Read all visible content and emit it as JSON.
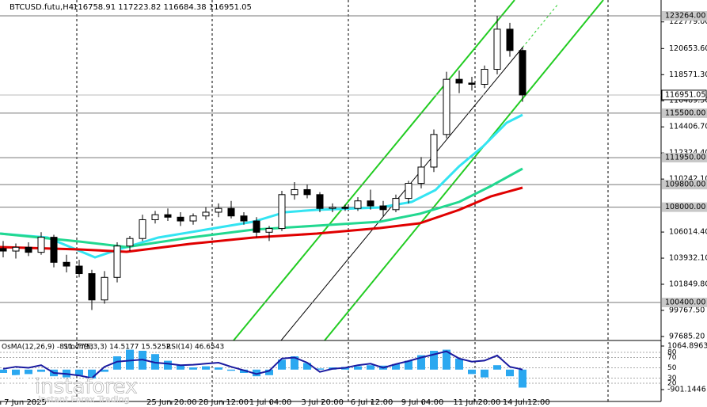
{
  "chart_data": [
    {
      "type": "candlestick",
      "title": "BTCUSD.futu,H4",
      "ohlc_header": "116758.91 117223.82 116684.38 116951.05",
      "x": [
        0,
        1,
        2,
        3,
        4,
        5,
        6,
        7,
        8,
        9,
        10,
        11,
        12,
        13,
        14,
        15,
        16,
        17,
        18,
        19,
        20,
        21,
        22,
        23,
        24,
        25,
        26,
        27,
        28,
        29,
        30,
        31,
        32,
        33,
        34,
        35,
        36,
        37,
        38,
        39,
        40,
        41
      ],
      "open": [
        104700,
        104500,
        104800,
        104400,
        105600,
        103600,
        103300,
        102700,
        100600,
        102400,
        104900,
        105500,
        107000,
        107400,
        107200,
        106900,
        107300,
        107600,
        107900,
        107300,
        106900,
        106000,
        106300,
        109000,
        109400,
        109000,
        107900,
        108000,
        107900,
        108500,
        108100,
        107800,
        108700,
        109900,
        111200,
        113800,
        118200,
        117900,
        117800,
        119000,
        122200,
        120500
      ],
      "high": [
        105300,
        105100,
        105200,
        106000,
        105800,
        104200,
        103800,
        103000,
        102900,
        105200,
        105700,
        107400,
        107700,
        107900,
        107600,
        107500,
        108000,
        108300,
        108500,
        107600,
        107200,
        106500,
        109300,
        110000,
        109800,
        109200,
        108300,
        108200,
        108800,
        109400,
        108500,
        109000,
        110100,
        112000,
        114200,
        118800,
        118900,
        118400,
        119300,
        123264,
        122700,
        120800
      ],
      "low": [
        104000,
        103900,
        104100,
        104200,
        103200,
        102800,
        102400,
        99800,
        100300,
        102000,
        104500,
        105300,
        106700,
        106900,
        106500,
        106600,
        107000,
        107200,
        107100,
        106600,
        105600,
        105300,
        106100,
        108600,
        108700,
        107600,
        107600,
        107700,
        107700,
        107800,
        107300,
        107600,
        108300,
        109500,
        110800,
        113500,
        117100,
        117300,
        117500,
        118600,
        120000,
        116400
      ],
      "close": [
        104500,
        104800,
        104400,
        105600,
        103600,
        103300,
        102700,
        100600,
        102400,
        104900,
        105500,
        107000,
        107400,
        107200,
        106900,
        107300,
        107600,
        107900,
        107300,
        106900,
        106000,
        106300,
        109000,
        109400,
        109000,
        107900,
        108000,
        107900,
        108500,
        108100,
        107800,
        108700,
        109900,
        111200,
        113800,
        118200,
        117900,
        117800,
        119000,
        122200,
        120500,
        116951.05
      ],
      "lines": [
        {
          "color": "#33e4f2",
          "x": [
            -0.25,
            3.5,
            7.25,
            9.125,
            12.25,
            16,
            19.75,
            22.25,
            24.75,
            29.75,
            32.25,
            34.125,
            36,
            37.875,
            39.75,
            41
          ],
          "values": [
            105892,
            105576,
            103997,
            104632,
            105576,
            106208,
            106840,
            107598,
            107787,
            107977,
            108419,
            109366,
            111261,
            112841,
            114736,
            115368
          ]
        },
        {
          "color": "#22d890",
          "x": [
            -0.25,
            6,
            9.75,
            14.75,
            19.75,
            24.75,
            29.75,
            32.875,
            36,
            38.5,
            41
          ],
          "values": [
            105892,
            105260,
            104818,
            105576,
            106208,
            106524,
            106840,
            107472,
            108419,
            109682,
            111072
          ]
        },
        {
          "color": "#e00000",
          "x": [
            -0.25,
            6,
            9.75,
            14.75,
            19.75,
            24.75,
            29.75,
            32.875,
            36,
            38.5,
            41
          ],
          "values": [
            104818,
            104632,
            104440,
            105070,
            105576,
            105892,
            106334,
            106714,
            107787,
            108860,
            109556
          ]
        }
      ],
      "levels": [
        {
          "value": 123264,
          "label": "123264.00"
        },
        {
          "value": 115500,
          "label": "115500.00"
        },
        {
          "value": 111950,
          "label": "111950.00"
        },
        {
          "value": 109800,
          "label": "109800.00"
        },
        {
          "value": 108000,
          "label": "108000.00"
        },
        {
          "value": 100400,
          "label": "100400.00"
        }
      ],
      "current": {
        "value": 116951.05,
        "label": "116951.05"
      },
      "xlim": [
        -0.25,
        51.9375
      ],
      "ylim": [
        97364.7,
        124527.4
      ],
      "yticks": [
        {
          "value": 122779,
          "label": "122779.00"
        },
        {
          "value": 120653.6,
          "label": "120653.60"
        },
        {
          "value": 118571.3,
          "label": "118571.30"
        },
        {
          "value": 116489.5,
          "label": "116489.50"
        },
        {
          "value": 114406.7,
          "label": "114406.70"
        },
        {
          "value": 112324.4,
          "label": "112324.40"
        },
        {
          "value": 110242.1,
          "label": "110242.10"
        },
        {
          "value": 106014.4,
          "label": "106014.40"
        },
        {
          "value": 103932.1,
          "label": "103932.10"
        },
        {
          "value": 101849.8,
          "label": "101849.80"
        },
        {
          "value": 99767.5,
          "label": "99767.50"
        },
        {
          "value": 97685.2,
          "label": "97685.20"
        }
      ],
      "xticks": [
        {
          "value": -0.2,
          "label": "7 Jun 2025"
        },
        {
          "value": 13.3,
          "label": "25 Jun 20:00"
        },
        {
          "value": 17.4,
          "label": "28 Jun 12:00"
        },
        {
          "value": 21.1,
          "label": "1 Jul 04:00"
        },
        {
          "value": 25.2,
          "label": "3 Jul 20:00"
        },
        {
          "value": 29.1,
          "label": "6 Jul 12:00"
        },
        {
          "value": 33.1,
          "label": "9 Jul 04:00"
        },
        {
          "value": 37.4,
          "label": "11 Jul 20:00"
        },
        {
          "value": 41.3,
          "label": "14 Jul 12:00"
        }
      ]
    },
    {
      "type": "oscillator",
      "labels": [
        "OsMA(12,26,9) -811.7793",
        "Stoch(5,3,3) 14.5177 15.5252",
        "RSI(14) 46.6543"
      ],
      "osma": [
        -150,
        -250,
        -200,
        -100,
        -300,
        -350,
        -250,
        -400,
        -100,
        600,
        900,
        850,
        700,
        400,
        200,
        100,
        150,
        100,
        -50,
        -150,
        -300,
        -250,
        450,
        600,
        300,
        50,
        100,
        120,
        150,
        200,
        180,
        250,
        400,
        650,
        850,
        900,
        500,
        -200,
        -350,
        200,
        -300,
        -811.7793
      ],
      "rsi": [
        48,
        52,
        50,
        55,
        40,
        38,
        35,
        30,
        52,
        62,
        64,
        66,
        60,
        58,
        55,
        56,
        58,
        60,
        52,
        45,
        38,
        44,
        68,
        70,
        60,
        42,
        48,
        50,
        55,
        58,
        50,
        57,
        63,
        70,
        76,
        82,
        68,
        62,
        64,
        74,
        52,
        46.6543
      ],
      "ylim": [
        -1437.2,
        1243.6
      ],
      "yticks": [
        1064.8963,
        -901.1446
      ],
      "y2lim": [
        -15.4,
        100
      ],
      "y2ticks": [
        80,
        70,
        50,
        30,
        20
      ]
    }
  ],
  "watermark": {
    "brand": "instaforex",
    "tagline": "Instant Forex Trading"
  }
}
